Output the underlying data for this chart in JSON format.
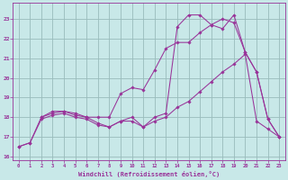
{
  "bg_color": "#c8e8e8",
  "grid_color": "#99bbbb",
  "line_color": "#993399",
  "xlim": [
    -0.5,
    23.5
  ],
  "ylim": [
    15.8,
    23.8
  ],
  "yticks": [
    16,
    17,
    18,
    19,
    20,
    21,
    22,
    23
  ],
  "xticks": [
    0,
    1,
    2,
    3,
    4,
    5,
    6,
    7,
    8,
    9,
    10,
    11,
    12,
    13,
    14,
    15,
    16,
    17,
    18,
    19,
    20,
    21,
    22,
    23
  ],
  "xlabel": "Windchill (Refroidissement éolien,°C)",
  "line1_x": [
    0,
    1,
    2,
    3,
    4,
    5,
    6,
    7,
    8,
    9,
    10,
    11,
    12,
    13,
    14,
    15,
    16,
    17,
    18,
    19,
    20,
    21,
    22,
    23
  ],
  "line1_y": [
    16.5,
    16.7,
    18.0,
    18.2,
    18.3,
    18.1,
    18.0,
    18.0,
    18.0,
    19.2,
    19.5,
    19.4,
    20.4,
    21.5,
    21.8,
    21.8,
    22.3,
    22.7,
    23.0,
    22.8,
    21.3,
    20.3,
    17.9,
    17.0
  ],
  "line2_x": [
    2,
    3,
    4,
    5,
    6,
    7,
    8,
    9,
    10,
    11,
    12,
    13,
    14,
    15,
    16,
    17,
    18,
    19,
    20,
    21,
    22,
    23
  ],
  "line2_y": [
    18.0,
    18.3,
    18.3,
    18.2,
    18.0,
    17.7,
    17.5,
    17.8,
    18.0,
    17.5,
    18.0,
    18.2,
    22.6,
    23.2,
    23.2,
    22.7,
    22.5,
    23.2,
    21.3,
    20.3,
    17.9,
    17.0
  ],
  "line3_x": [
    0,
    1,
    2,
    3,
    4,
    5,
    6,
    7,
    8,
    9,
    10,
    11,
    12,
    13,
    14,
    15,
    16,
    17,
    18,
    19,
    20,
    21,
    22,
    23
  ],
  "line3_y": [
    16.5,
    16.7,
    17.9,
    18.1,
    18.2,
    18.0,
    17.9,
    17.6,
    17.5,
    17.8,
    17.8,
    17.5,
    17.8,
    18.0,
    18.5,
    18.8,
    19.3,
    19.8,
    20.3,
    20.7,
    21.2,
    17.8,
    17.4,
    17.0
  ]
}
